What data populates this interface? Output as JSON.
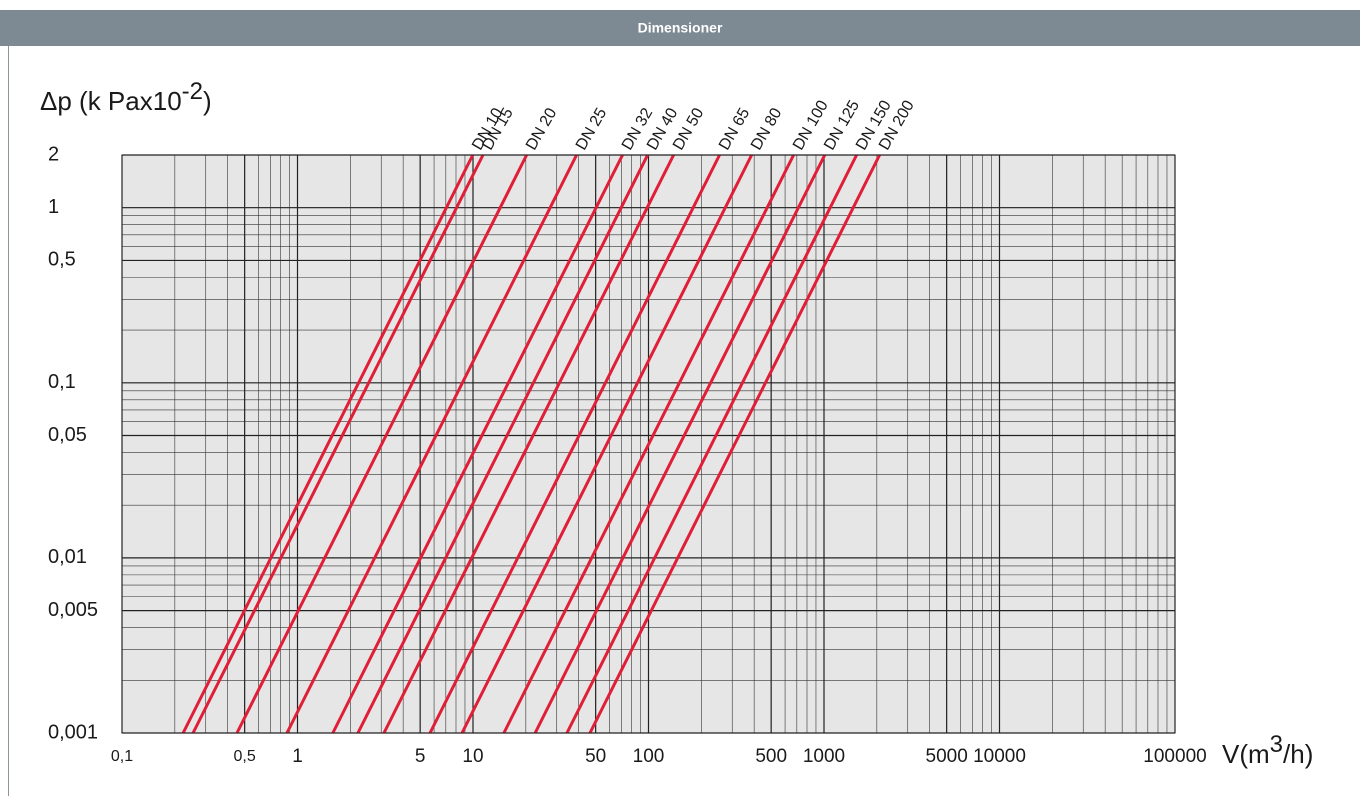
{
  "header": "Dimensioner",
  "chart_data": {
    "type": "line",
    "y_label": "Δp (k Pax10",
    "y_label_sup": "-2",
    "y_label_end": ")",
    "x_label": "V(m",
    "x_label_sup": "3",
    "x_label_end": "/h)",
    "xscale": "log",
    "yscale": "log",
    "grid": true,
    "minor_grid": true,
    "xlim": [
      0.1,
      100000
    ],
    "ylim": [
      0.001,
      2
    ],
    "xticks": [
      {
        "value": 0.1,
        "label": "0,1"
      },
      {
        "value": 0.5,
        "label": "0,5"
      },
      1,
      5,
      10,
      50,
      100,
      500,
      1000,
      5000,
      10000,
      100000
    ],
    "yticks": [
      2,
      1,
      {
        "value": 0.5,
        "label": "0,5"
      },
      {
        "value": 0.1,
        "label": "0,1"
      },
      {
        "value": 0.05,
        "label": "0,05"
      },
      {
        "value": 0.01,
        "label": "0,01"
      },
      {
        "value": 0.005,
        "label": "0,005"
      },
      {
        "value": 0.001,
        "label": "0,001"
      }
    ],
    "series": [
      {
        "name": "DN 10",
        "color": "#e01e37",
        "x": [
          0.223,
          9.97
        ],
        "values": [
          0.001,
          2
        ]
      },
      {
        "name": "DN 15",
        "color": "#e01e37",
        "x": [
          0.254,
          11.4
        ],
        "values": [
          0.001,
          2
        ]
      },
      {
        "name": "DN 20",
        "color": "#e01e37",
        "x": [
          0.452,
          20.2
        ],
        "values": [
          0.001,
          2
        ]
      },
      {
        "name": "DN 25",
        "color": "#e01e37",
        "x": [
          0.871,
          38.9
        ],
        "values": [
          0.001,
          2
        ]
      },
      {
        "name": "DN 32",
        "color": "#e01e37",
        "x": [
          1.59,
          71.1
        ],
        "values": [
          0.001,
          2
        ]
      },
      {
        "name": "DN 40",
        "color": "#e01e37",
        "x": [
          2.21,
          98.8
        ],
        "values": [
          0.001,
          2
        ]
      },
      {
        "name": "DN 50",
        "color": "#e01e37",
        "x": [
          3.11,
          139
        ],
        "values": [
          0.001,
          2
        ]
      },
      {
        "name": "DN 65",
        "color": "#e01e37",
        "x": [
          5.69,
          254
        ],
        "values": [
          0.001,
          2
        ]
      },
      {
        "name": "DN 80",
        "color": "#e01e37",
        "x": [
          8.66,
          387
        ],
        "values": [
          0.001,
          2
        ]
      },
      {
        "name": "DN 100",
        "color": "#e01e37",
        "x": [
          15.0,
          671
        ],
        "values": [
          0.001,
          2
        ]
      },
      {
        "name": "DN 125",
        "color": "#e01e37",
        "x": [
          22.6,
          1010
        ],
        "values": [
          0.001,
          2
        ]
      },
      {
        "name": "DN 150",
        "color": "#e01e37",
        "x": [
          34.3,
          1533
        ],
        "values": [
          0.001,
          2
        ]
      },
      {
        "name": "DN 200",
        "color": "#e01e37",
        "x": [
          46.4,
          2074
        ],
        "values": [
          0.001,
          2
        ]
      }
    ]
  }
}
